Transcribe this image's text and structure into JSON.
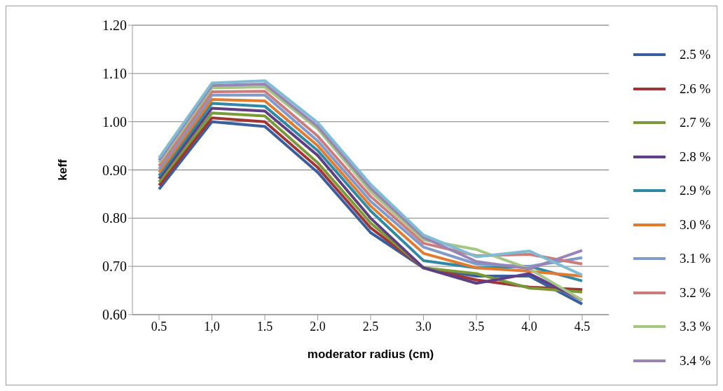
{
  "chart_data": {
    "type": "line",
    "xlabel": "moderator radius (cm)",
    "ylabel": "keff",
    "categories": [
      "0.5",
      "1,0",
      "1.5",
      "2.0",
      "2.5",
      "3.0",
      "3.5",
      "4.0",
      "4.5"
    ],
    "ylim": [
      0.6,
      1.2
    ],
    "yticks": [
      {
        "value": 0.6,
        "label": "0.60"
      },
      {
        "value": 0.7,
        "label": "0.70"
      },
      {
        "value": 0.8,
        "label": "0.80"
      },
      {
        "value": 0.9,
        "label": "0.90"
      },
      {
        "value": 1.0,
        "label": "1.00"
      },
      {
        "value": 1.1,
        "label": "1.10"
      },
      {
        "value": 1.2,
        "label": "1.20"
      }
    ],
    "grid": "y",
    "legend": "right",
    "marker": "none",
    "series": [
      {
        "name": "2.5 %",
        "color": "#3a5f9e",
        "values": [
          0.86,
          1.0,
          0.99,
          0.895,
          0.77,
          0.697,
          0.68,
          0.68,
          0.622
        ]
      },
      {
        "name": "2.6 %",
        "color": "#a23434",
        "values": [
          0.868,
          1.008,
          1.0,
          0.905,
          0.78,
          0.697,
          0.672,
          0.657,
          0.652
        ]
      },
      {
        "name": "2.7 %",
        "color": "#7a9a3a",
        "values": [
          0.875,
          1.018,
          1.012,
          0.915,
          0.79,
          0.697,
          0.685,
          0.655,
          0.647
        ]
      },
      {
        "name": "2.8 %",
        "color": "#5e3f85",
        "values": [
          0.882,
          1.028,
          1.022,
          0.93,
          0.8,
          0.697,
          0.665,
          0.685,
          0.63
        ]
      },
      {
        "name": "2.9 %",
        "color": "#2e8aa3",
        "values": [
          0.888,
          1.038,
          1.032,
          0.94,
          0.815,
          0.712,
          0.697,
          0.7,
          0.67
        ]
      },
      {
        "name": "3.0 %",
        "color": "#e07b30",
        "values": [
          0.895,
          1.046,
          1.043,
          0.95,
          0.825,
          0.727,
          0.697,
          0.69,
          0.68
        ]
      },
      {
        "name": "3.1 %",
        "color": "#7f9acb",
        "values": [
          0.902,
          1.055,
          1.055,
          0.96,
          0.835,
          0.74,
          0.705,
          0.7,
          0.718
        ]
      },
      {
        "name": "3.2 %",
        "color": "#cd7c7b",
        "values": [
          0.908,
          1.062,
          1.063,
          0.97,
          0.845,
          0.748,
          0.722,
          0.725,
          0.705
        ]
      },
      {
        "name": "3.3 %",
        "color": "#a7c585",
        "values": [
          0.915,
          1.07,
          1.072,
          0.985,
          0.855,
          0.755,
          0.735,
          0.695,
          0.63
        ]
      },
      {
        "name": "3.4 %",
        "color": "#9885b5",
        "values": [
          0.92,
          1.075,
          1.078,
          0.99,
          0.862,
          0.76,
          0.71,
          0.695,
          0.733
        ]
      },
      {
        "color": "#7fbcd4",
        "values": [
          0.925,
          1.08,
          1.085,
          0.998,
          0.87,
          0.765,
          0.72,
          0.732,
          0.682
        ]
      }
    ]
  }
}
